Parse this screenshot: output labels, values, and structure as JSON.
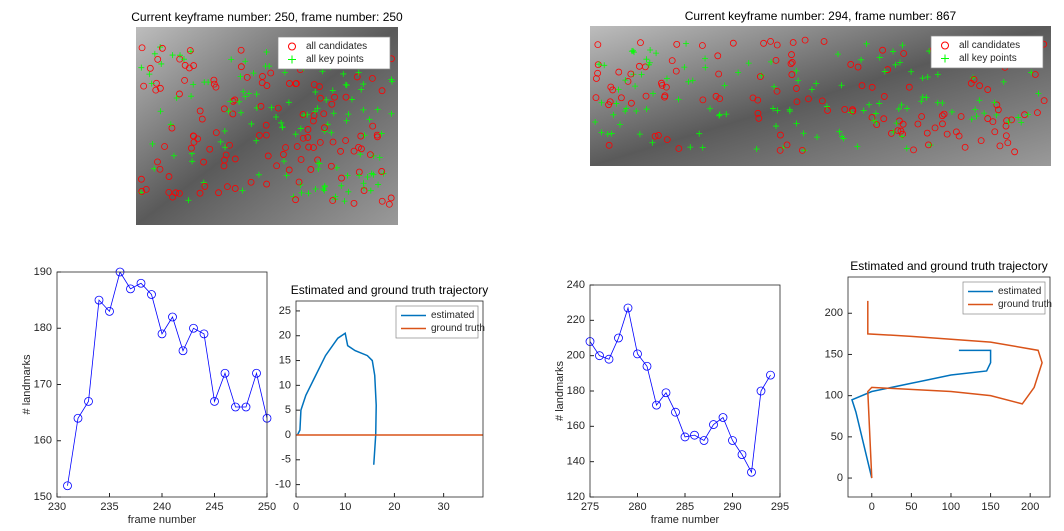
{
  "chart_data": [
    {
      "type": "image",
      "title": "Current keyframe number: 250, frame number: 250",
      "series": [
        {
          "name": "all candidates",
          "color": "#ff0000",
          "marker": "o"
        },
        {
          "name": "all key points",
          "color": "#00ff00",
          "marker": "+"
        }
      ]
    },
    {
      "type": "line",
      "xlabel": "frame number",
      "ylabel": "# landmarks",
      "color": "#0000ff",
      "marker": "o",
      "x": [
        231,
        232,
        233,
        234,
        235,
        236,
        237,
        238,
        239,
        240,
        241,
        242,
        243,
        244,
        245,
        246,
        247,
        248,
        249,
        250
      ],
      "values": [
        152,
        164,
        167,
        185,
        183,
        190,
        187,
        188,
        186,
        179,
        182,
        176,
        180,
        179,
        167,
        172,
        166,
        166,
        172,
        164
      ],
      "xlim": [
        230,
        250
      ],
      "xticks": [
        230,
        235,
        240,
        245,
        250
      ],
      "ylim": [
        150,
        190
      ],
      "yticks": [
        150,
        160,
        170,
        180,
        190
      ]
    },
    {
      "type": "line",
      "title": "Estimated and ground truth trajectory",
      "legend": "upper right",
      "series": [
        {
          "name": "estimated",
          "color": "#0072bd",
          "x": [
            0.3,
            0.8,
            1,
            2,
            3.5,
            6,
            8.5,
            10,
            10.5,
            12,
            14.5,
            15.5,
            16,
            16.3,
            16.2,
            15.8
          ],
          "values": [
            0,
            1,
            5,
            8,
            11,
            16,
            19.5,
            20.5,
            18,
            17,
            16,
            15,
            12,
            6,
            0,
            -6
          ]
        },
        {
          "name": "ground truth",
          "color": "#d95319",
          "x": [
            0,
            38
          ],
          "values": [
            0,
            0
          ]
        }
      ],
      "xlim": [
        0,
        38
      ],
      "xticks": [
        0,
        10,
        20,
        30
      ],
      "ylim": [
        -12.5,
        27
      ],
      "yticks": [
        -10,
        -5,
        0,
        5,
        10,
        15,
        20,
        25
      ]
    },
    {
      "type": "image",
      "title": "Current keyframe number: 294, frame number: 867",
      "series": [
        {
          "name": "all candidates",
          "color": "#ff0000",
          "marker": "o"
        },
        {
          "name": "all key points",
          "color": "#00ff00",
          "marker": "+"
        }
      ]
    },
    {
      "type": "line",
      "xlabel": "frame number",
      "ylabel": "# landmarks",
      "color": "#0000ff",
      "marker": "o",
      "x": [
        275,
        276,
        277,
        278,
        279,
        280,
        281,
        282,
        283,
        284,
        285,
        286,
        287,
        288,
        289,
        290,
        291,
        292,
        293,
        294
      ],
      "values": [
        208,
        200,
        198,
        210,
        227,
        201,
        194,
        172,
        179,
        168,
        154,
        155,
        152,
        161,
        165,
        152,
        144,
        134,
        180,
        189
      ],
      "xlim": [
        275,
        295
      ],
      "xticks": [
        275,
        280,
        285,
        290,
        295
      ],
      "ylim": [
        120,
        240
      ],
      "yticks": [
        120,
        140,
        160,
        180,
        200,
        220,
        240
      ]
    },
    {
      "type": "line",
      "title": "Estimated and ground truth trajectory",
      "legend": "upper right",
      "series": [
        {
          "name": "estimated",
          "color": "#0072bd",
          "x": [
            0,
            -10,
            -20,
            -25,
            0,
            50,
            100,
            145,
            150,
            150,
            110
          ],
          "values": [
            0,
            40,
            80,
            95,
            105,
            115,
            125,
            130,
            140,
            155,
            155
          ]
        },
        {
          "name": "ground truth",
          "color": "#d95319",
          "x": [
            -5,
            -5,
            50,
            150,
            210,
            215,
            205,
            190,
            150,
            100,
            0,
            -5,
            0
          ],
          "values": [
            215,
            175,
            172,
            165,
            155,
            140,
            110,
            90,
            100,
            105,
            110,
            105,
            0
          ]
        }
      ],
      "xlim": [
        -30,
        225
      ],
      "xticks": [
        0,
        50,
        100,
        150,
        200
      ],
      "ylim": [
        -23,
        244
      ],
      "yticks": [
        0,
        50,
        100,
        150,
        200
      ]
    }
  ]
}
